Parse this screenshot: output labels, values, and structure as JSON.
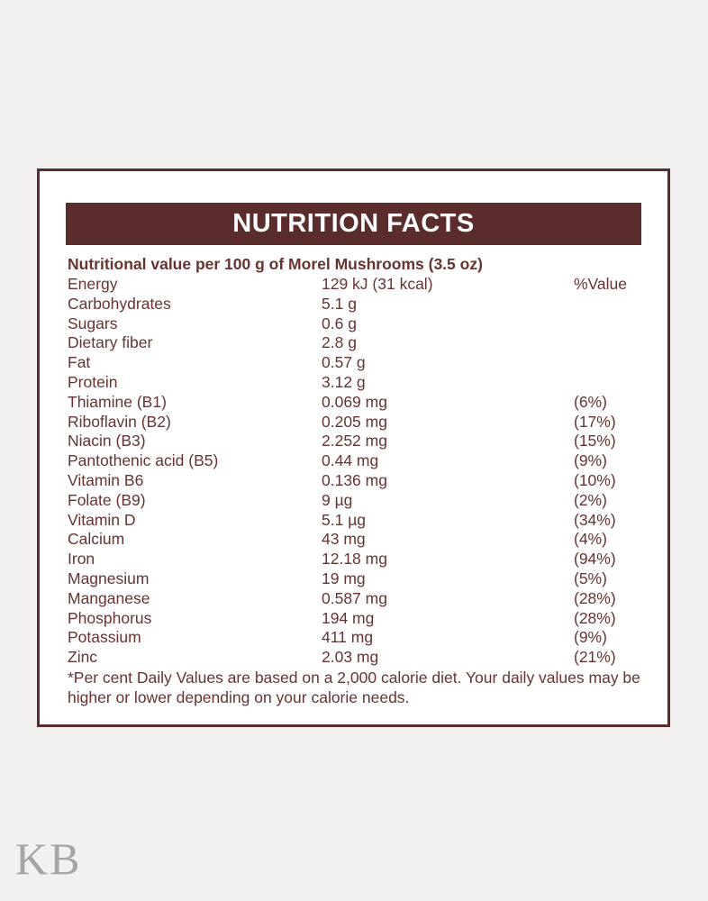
{
  "label": {
    "title": "NUTRITION FACTS",
    "subtitle": "Nutritional value per 100 g of Morel Mushrooms (3.5 oz)",
    "percent_header": "%Value",
    "rows": [
      {
        "name": "Energy",
        "value": "129 kJ (31 kcal)",
        "percent": "%Value"
      },
      {
        "name": "Carbohydrates",
        "value": "5.1 g",
        "percent": ""
      },
      {
        "name": "Sugars",
        "value": "0.6 g",
        "percent": ""
      },
      {
        "name": "Dietary fiber",
        "value": "2.8 g",
        "percent": ""
      },
      {
        "name": "Fat",
        "value": "0.57 g",
        "percent": ""
      },
      {
        "name": "Protein",
        "value": "3.12 g",
        "percent": ""
      },
      {
        "name": "Thiamine (B1)",
        "value": "0.069 mg",
        "percent": "(6%)"
      },
      {
        "name": "Riboflavin (B2)",
        "value": "0.205 mg",
        "percent": "(17%)"
      },
      {
        "name": "Niacin (B3)",
        "value": "2.252 mg",
        "percent": "(15%)"
      },
      {
        "name": "Pantothenic acid (B5)",
        "value": "0.44 mg",
        "percent": "(9%)"
      },
      {
        "name": "Vitamin B6",
        "value": "0.136 mg",
        "percent": "(10%)"
      },
      {
        "name": "Folate (B9)",
        "value": "9 µg",
        "percent": "(2%)"
      },
      {
        "name": "Vitamin D",
        "value": "5.1 µg",
        "percent": "(34%)"
      },
      {
        "name": "Calcium",
        "value": "43 mg",
        "percent": "(4%)"
      },
      {
        "name": "Iron",
        "value": "12.18 mg",
        "percent": "(94%)"
      },
      {
        "name": "Magnesium",
        "value": "19 mg",
        "percent": "(5%)"
      },
      {
        "name": "Manganese",
        "value": "0.587 mg",
        "percent": "(28%)"
      },
      {
        "name": "Phosphorus",
        "value": "194 mg",
        "percent": "(28%)"
      },
      {
        "name": "Potassium",
        "value": "411 mg",
        "percent": "(9%)"
      },
      {
        "name": "Zinc",
        "value": "2.03 mg",
        "percent": "(21%)"
      }
    ],
    "footnote": "*Per cent Daily Values are based on a 2,000 calorie diet. Your daily values may be higher or lower depending on your calorie needs.",
    "colors": {
      "maroon": "#5a2c2c",
      "text": "#673333",
      "background": "#f2f1ef",
      "card": "#ffffff",
      "watermark": "#a5a5a5"
    }
  },
  "watermark": "KB"
}
